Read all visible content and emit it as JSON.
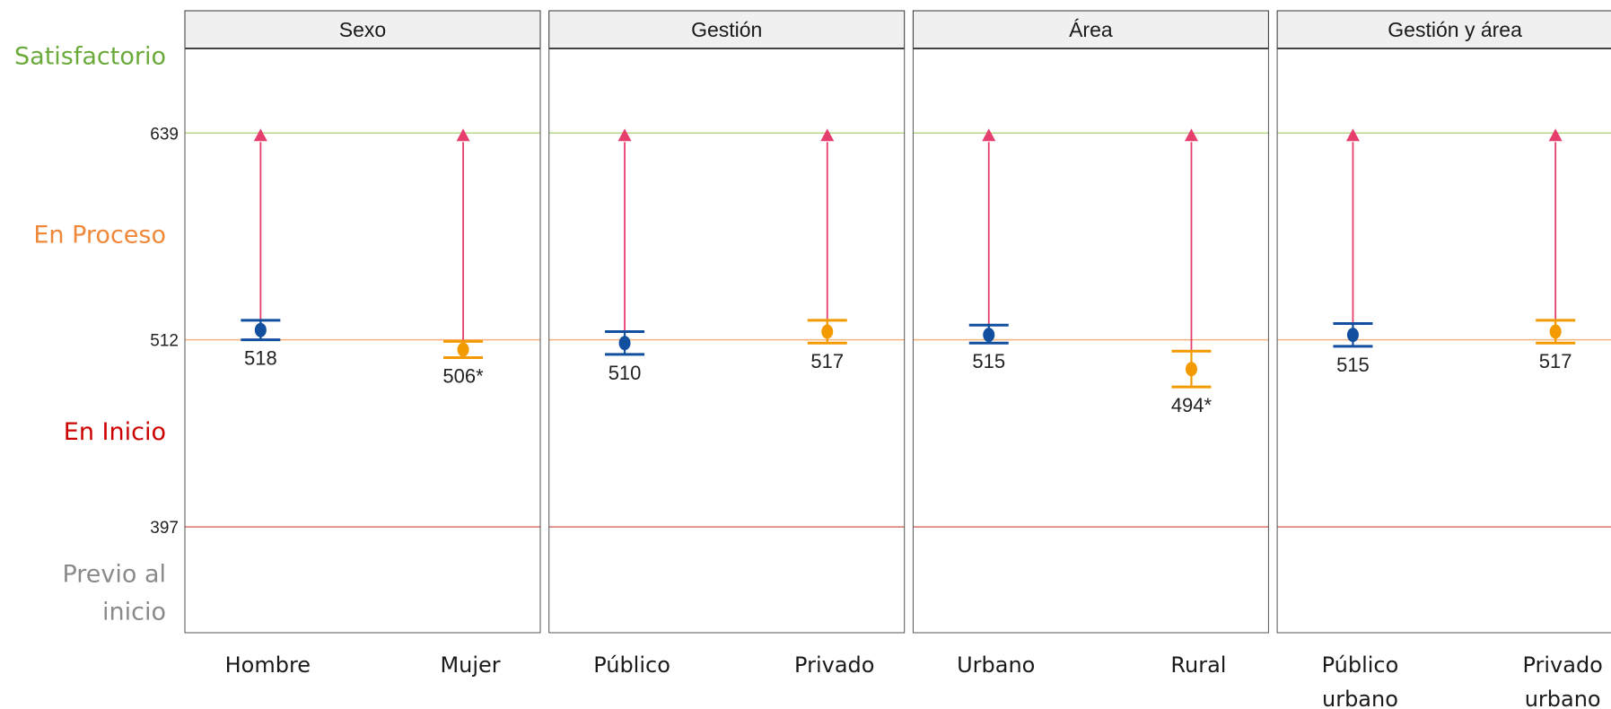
{
  "chart_data": {
    "type": "scatter",
    "y_range": [
      332,
      691
    ],
    "y_ticks": [
      {
        "value": 639,
        "label": "639",
        "line_color": "#b7d88a"
      },
      {
        "value": 512,
        "label": "512",
        "line_color": "#f7b27a"
      },
      {
        "value": 397,
        "label": "397",
        "line_color": "#d9706b"
      }
    ],
    "levels": [
      {
        "label": "Satisfactorio",
        "lines": [
          "Satisfactorio"
        ],
        "color": "#6aaa3a",
        "value": 687
      },
      {
        "label": "En Proceso",
        "lines": [
          "En Proceso"
        ],
        "color": "#f0883a",
        "value": 577
      },
      {
        "label": "En Inicio",
        "lines": [
          "En Inicio"
        ],
        "color": "#cc0000",
        "value": 456
      },
      {
        "label": "Previo al inicio",
        "lines": [
          "Previo al",
          "inicio"
        ],
        "color": "#8a8a8a",
        "value": 357
      }
    ],
    "target": {
      "value": 639,
      "color": "#e63e6d"
    },
    "series_colors": [
      "#124f9e",
      "#f29a00"
    ],
    "panels": [
      {
        "title": "Sexo",
        "points": [
          {
            "category": "Hombre",
            "category_lines": [
              "Hombre"
            ],
            "value": 518,
            "label": "518",
            "ci": [
              512,
              524
            ],
            "series": 0
          },
          {
            "category": "Mujer",
            "category_lines": [
              "Mujer"
            ],
            "value": 506,
            "label": "506*",
            "ci": [
              501,
              511
            ],
            "series": 1
          }
        ]
      },
      {
        "title": "Gestión",
        "points": [
          {
            "category": "Público",
            "category_lines": [
              "Público"
            ],
            "value": 510,
            "label": "510",
            "ci": [
              503,
              517
            ],
            "series": 0
          },
          {
            "category": "Privado",
            "category_lines": [
              "Privado"
            ],
            "value": 517,
            "label": "517",
            "ci": [
              510,
              524
            ],
            "series": 1
          }
        ]
      },
      {
        "title": "Área",
        "points": [
          {
            "category": "Urbano",
            "category_lines": [
              "Urbano"
            ],
            "value": 515,
            "label": "515",
            "ci": [
              510,
              521
            ],
            "series": 0
          },
          {
            "category": "Rural",
            "category_lines": [
              "Rural"
            ],
            "value": 494,
            "label": "494*",
            "ci": [
              483,
              505
            ],
            "series": 1
          }
        ]
      },
      {
        "title": "Gestión y área",
        "points": [
          {
            "category": "Público urbano",
            "category_lines": [
              "Público",
              "urbano"
            ],
            "value": 515,
            "label": "515",
            "ci": [
              508,
              522
            ],
            "series": 0
          },
          {
            "category": "Privado urbano",
            "category_lines": [
              "Privado",
              "urbano"
            ],
            "value": 517,
            "label": "517",
            "ci": [
              510,
              524
            ],
            "series": 1
          }
        ]
      }
    ]
  }
}
